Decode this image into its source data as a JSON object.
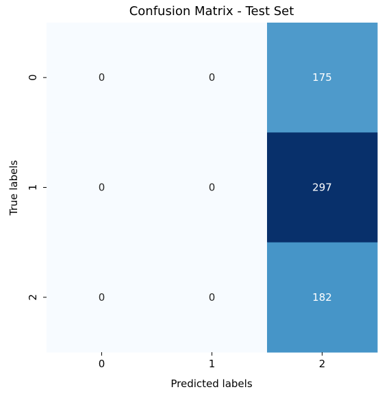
{
  "chart_data": {
    "type": "heatmap",
    "title": "Confusion Matrix - Test Set",
    "xlabel": "Predicted labels",
    "ylabel": "True labels",
    "x_categories": [
      "0",
      "1",
      "2"
    ],
    "y_categories": [
      "0",
      "1",
      "2"
    ],
    "values": [
      [
        0,
        0,
        175
      ],
      [
        0,
        0,
        297
      ],
      [
        0,
        0,
        182
      ]
    ],
    "colormap": "Blues",
    "colorbar": false,
    "annotations": true,
    "vmin": 0,
    "vmax": 297
  }
}
